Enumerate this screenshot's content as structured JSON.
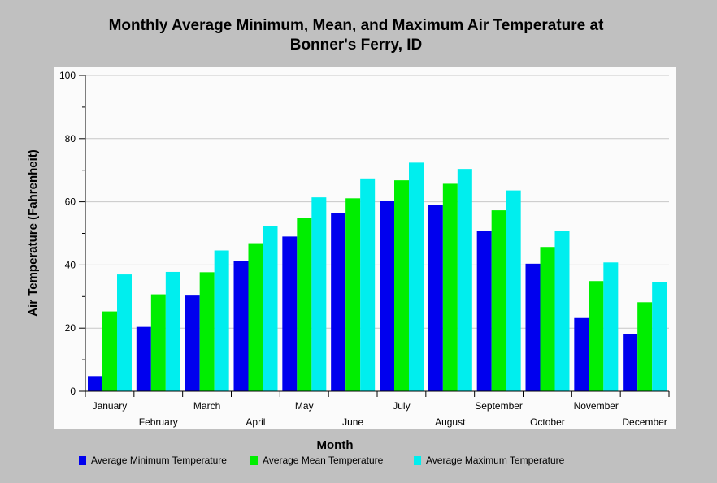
{
  "chart_data": {
    "type": "bar",
    "title_line1": "Monthly Average Minimum, Mean, and Maximum Air Temperature at",
    "title_line2": "Bonner's Ferry, ID",
    "xlabel": "Month",
    "ylabel": "Air Temperature (Fahrenheit)",
    "ylim": [
      0,
      100
    ],
    "yticks": [
      0,
      20,
      40,
      60,
      80,
      100
    ],
    "grid": true,
    "legend_position": "bottom",
    "categories": [
      "January",
      "February",
      "March",
      "April",
      "May",
      "June",
      "July",
      "August",
      "September",
      "October",
      "November",
      "December"
    ],
    "series": [
      {
        "name": "Average Minimum Temperature",
        "color": "#0000ee",
        "values": [
          4.8,
          20.4,
          30.3,
          41.3,
          49.0,
          56.3,
          60.2,
          59.1,
          50.8,
          40.4,
          23.2,
          18.0
        ]
      },
      {
        "name": "Average Mean Temperature",
        "color": "#00ee00",
        "values": [
          25.3,
          30.7,
          37.7,
          46.9,
          55.0,
          61.1,
          66.8,
          65.7,
          57.3,
          45.7,
          34.9,
          28.2
        ]
      },
      {
        "name": "Average Maximum Temperature",
        "color": "#00eeee",
        "values": [
          37.0,
          37.8,
          44.6,
          52.4,
          61.4,
          67.4,
          72.4,
          70.4,
          63.6,
          50.8,
          40.8,
          34.6
        ]
      }
    ]
  }
}
